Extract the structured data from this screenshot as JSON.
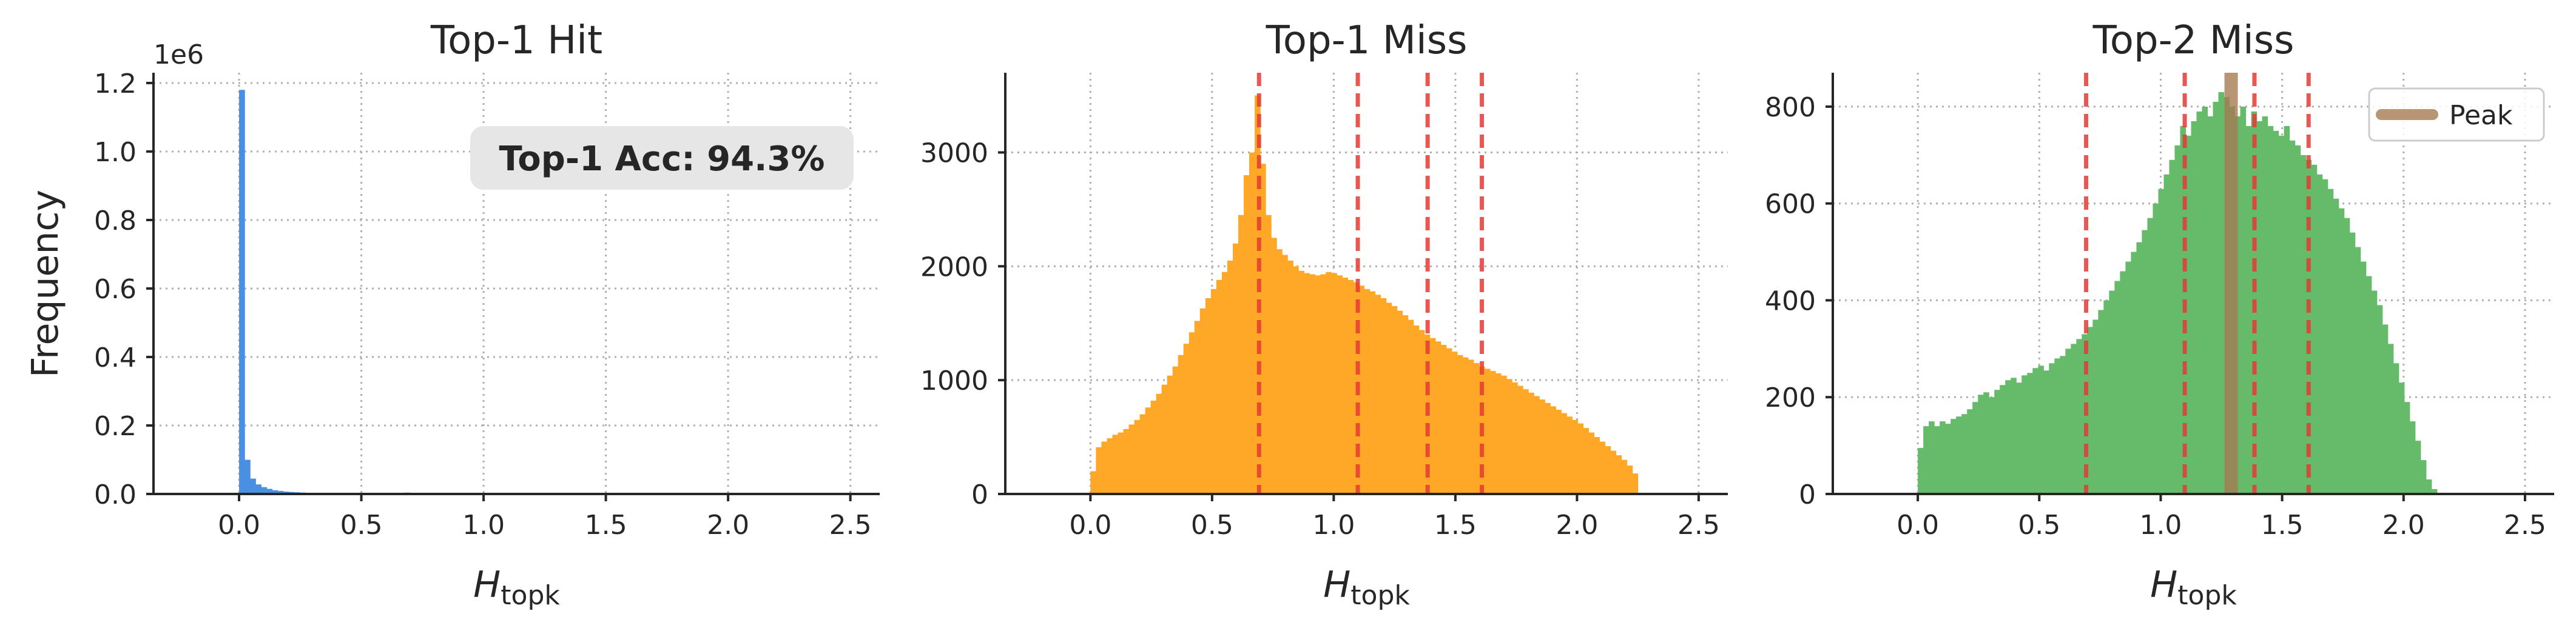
{
  "chart_data": [
    {
      "type": "bar",
      "title": "Top-1 Hit",
      "xlabel_main": "H",
      "xlabel_sub": "topk",
      "ylabel": "Frequency",
      "y_offset_label": "1e6",
      "xlim": [
        -0.35,
        2.62
      ],
      "ylim": [
        0,
        1230000
      ],
      "xticks": [
        0.0,
        0.5,
        1.0,
        1.5,
        2.0,
        2.5
      ],
      "xtick_labels": [
        "0.0",
        "0.5",
        "1.0",
        "1.5",
        "2.0",
        "2.5"
      ],
      "yticks": [
        0,
        200000,
        400000,
        600000,
        800000,
        1000000,
        1200000
      ],
      "ytick_labels": [
        "0.0",
        "0.2",
        "0.4",
        "0.6",
        "0.8",
        "1.0",
        "1.2"
      ],
      "grid": true,
      "color": "#4a90e2",
      "annotation": "Top-1 Acc: 94.3%",
      "bin_start": 0.0,
      "bin_width": 0.0225,
      "values": [
        1180000,
        100000,
        45000,
        28000,
        20000,
        15000,
        11000,
        9000,
        7000,
        6000,
        5000,
        4200,
        3500,
        3000,
        2600,
        2200,
        1900,
        1600,
        1400,
        1300,
        1200,
        1100,
        1000,
        950,
        900,
        850,
        800,
        750,
        700,
        650,
        4000,
        3000,
        600,
        550,
        500,
        450,
        400,
        380,
        360,
        340,
        320,
        300,
        280,
        260,
        240,
        220,
        200,
        180,
        170,
        160,
        150,
        140,
        130,
        120,
        110,
        100,
        90,
        80,
        70,
        60,
        50,
        40,
        30,
        20,
        10
      ]
    },
    {
      "type": "bar",
      "title": "Top-1 Miss",
      "xlabel_main": "H",
      "xlabel_sub": "topk",
      "xlim": [
        -0.35,
        2.62
      ],
      "ylim": [
        0,
        3700
      ],
      "xticks": [
        0.0,
        0.5,
        1.0,
        1.5,
        2.0,
        2.5
      ],
      "xtick_labels": [
        "0.0",
        "0.5",
        "1.0",
        "1.5",
        "2.0",
        "2.5"
      ],
      "yticks": [
        0,
        1000,
        2000,
        3000
      ],
      "ytick_labels": [
        "0",
        "1000",
        "2000",
        "3000"
      ],
      "grid": true,
      "color": "#ffa726",
      "vlines": [
        0.693,
        1.099,
        1.386,
        1.609
      ],
      "vline_color": "#e53935",
      "bin_start": 0.0,
      "bin_width": 0.0225,
      "values": [
        200,
        410,
        460,
        490,
        520,
        540,
        570,
        610,
        650,
        700,
        760,
        820,
        880,
        960,
        1040,
        1120,
        1220,
        1320,
        1420,
        1520,
        1630,
        1720,
        1800,
        1880,
        1950,
        2050,
        2200,
        2450,
        2800,
        3000,
        3500,
        2900,
        2450,
        2250,
        2150,
        2100,
        2050,
        2000,
        1960,
        1940,
        1930,
        1920,
        1930,
        1950,
        1940,
        1920,
        1900,
        1880,
        1860,
        1830,
        1800,
        1780,
        1750,
        1720,
        1680,
        1650,
        1610,
        1570,
        1530,
        1480,
        1440,
        1400,
        1370,
        1340,
        1310,
        1280,
        1250,
        1220,
        1200,
        1180,
        1150,
        1120,
        1100,
        1080,
        1060,
        1040,
        1010,
        980,
        950,
        920,
        890,
        860,
        830,
        800,
        770,
        740,
        710,
        680,
        650,
        620,
        580,
        540,
        500,
        460,
        420,
        380,
        340,
        300,
        250,
        180
      ]
    },
    {
      "type": "bar",
      "title": "Top-2 Miss",
      "xlabel_main": "H",
      "xlabel_sub": "topk",
      "xlim": [
        -0.35,
        2.62
      ],
      "ylim": [
        0,
        870
      ],
      "xticks": [
        0.0,
        0.5,
        1.0,
        1.5,
        2.0,
        2.5
      ],
      "xtick_labels": [
        "0.0",
        "0.5",
        "1.0",
        "1.5",
        "2.0",
        "2.5"
      ],
      "yticks": [
        0,
        200,
        400,
        600,
        800
      ],
      "ytick_labels": [
        "0",
        "200",
        "400",
        "600",
        "800"
      ],
      "grid": true,
      "color": "#66bb6a",
      "vlines": [
        0.693,
        1.099,
        1.386,
        1.609
      ],
      "vline_color": "#e53935",
      "peak_line": 1.29,
      "peak_color": "#a67c52",
      "legend": [
        "Peak"
      ],
      "legend_position": "upper right",
      "bin_start": 0.0,
      "bin_width": 0.0225,
      "values": [
        95,
        140,
        150,
        140,
        150,
        145,
        155,
        160,
        165,
        175,
        190,
        205,
        210,
        200,
        215,
        225,
        235,
        240,
        230,
        245,
        250,
        260,
        265,
        255,
        270,
        280,
        285,
        300,
        310,
        320,
        330,
        345,
        360,
        380,
        400,
        420,
        440,
        460,
        480,
        500,
        520,
        545,
        570,
        600,
        630,
        660,
        690,
        720,
        760,
        740,
        770,
        790,
        800,
        780,
        810,
        830,
        820,
        800,
        780,
        800,
        760,
        790,
        770,
        780,
        760,
        750,
        740,
        760,
        730,
        720,
        700,
        690,
        680,
        660,
        650,
        630,
        610,
        590,
        570,
        540,
        510,
        480,
        450,
        420,
        390,
        350,
        310,
        270,
        230,
        190,
        150,
        110,
        70,
        30,
        10
      ]
    }
  ]
}
